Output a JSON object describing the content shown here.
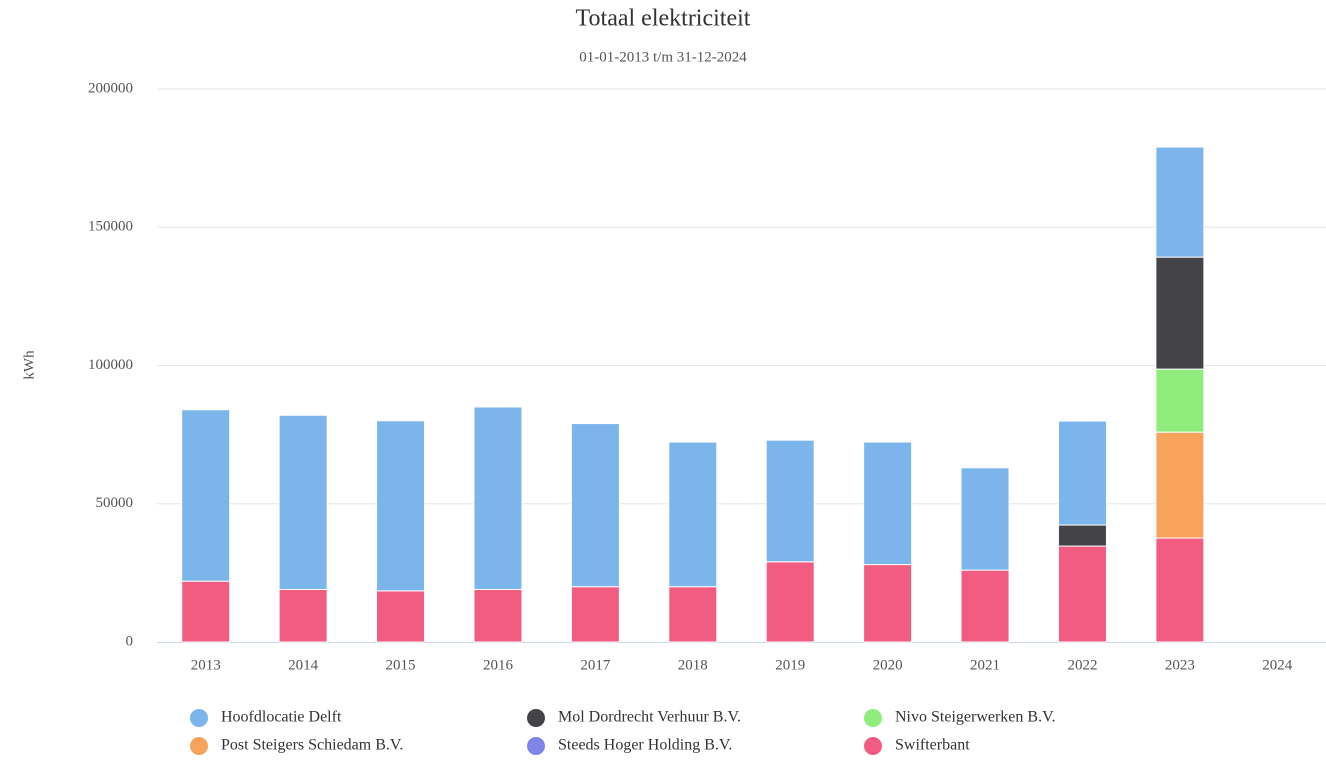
{
  "chart_data": {
    "type": "stacked_bar",
    "title": "Totaal elektriciteit",
    "subtitle": "01-01-2013 t/m 31-12-2024",
    "y_label": "kWh",
    "categories": [
      "2013",
      "2014",
      "2015",
      "2016",
      "2017",
      "2018",
      "2019",
      "2020",
      "2021",
      "2022",
      "2023",
      "2024"
    ],
    "series": [
      {
        "name": "Hoofdlocatie Delft",
        "color": "#7cb5ec",
        "values": [
          62000,
          63000,
          61500,
          66000,
          59000,
          52300,
          44000,
          44300,
          37000,
          37600,
          39800,
          null
        ]
      },
      {
        "name": "Mol Dordrecht Verhuur B.V.",
        "color": "#434348",
        "values": [
          null,
          null,
          null,
          null,
          null,
          null,
          null,
          null,
          null,
          7600,
          40500,
          null
        ]
      },
      {
        "name": "Nivo Steigerwerken B.V.",
        "color": "#90ed7d",
        "values": [
          null,
          null,
          null,
          null,
          null,
          null,
          null,
          null,
          null,
          null,
          22800,
          null
        ]
      },
      {
        "name": "Post Steigers Schiedam B.V.",
        "color": "#f7a35c",
        "values": [
          null,
          null,
          null,
          null,
          null,
          null,
          null,
          null,
          null,
          null,
          38300,
          null
        ]
      },
      {
        "name": "Steeds Hoger Holding B.V.",
        "color": "#8085e9",
        "values": [
          null,
          null,
          null,
          null,
          null,
          null,
          null,
          null,
          null,
          null,
          null,
          null
        ]
      },
      {
        "name": "Swifterbant",
        "color": "#f15c80",
        "values": [
          22000,
          19000,
          18500,
          19000,
          20000,
          20000,
          29000,
          28000,
          26000,
          34700,
          37600,
          null
        ]
      }
    ],
    "ylim": [
      0,
      200000
    ],
    "yticks": [
      0,
      50000,
      100000,
      150000,
      200000
    ],
    "grid": true
  }
}
